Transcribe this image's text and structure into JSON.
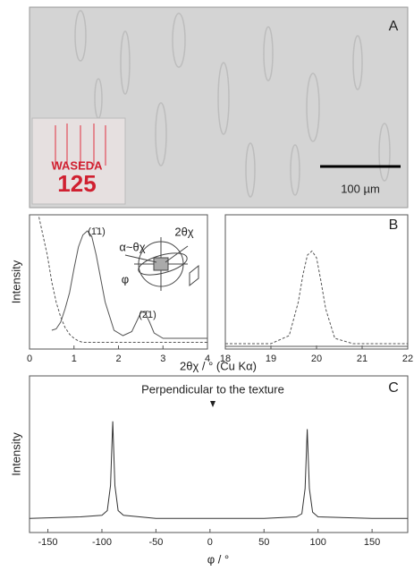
{
  "panel_a": {
    "label": "A",
    "scale_bar": "100 µm",
    "sample_text": [
      "WASEDA",
      "125"
    ]
  },
  "chart_data": [
    {
      "type": "line",
      "panel": "B",
      "ylabel": "Intensity",
      "xlabel": "2θχ / ° (Cu Kα)",
      "annotations": [
        "(1̄1)",
        "(2̄1)",
        "2θχ",
        "α~θχ",
        "φ"
      ],
      "x": [
        0.05,
        0.2,
        0.4,
        0.5,
        0.6,
        0.7,
        0.8,
        0.9,
        1.0,
        1.1,
        1.2,
        1.3,
        1.4,
        1.5,
        1.7,
        1.9,
        2.1,
        2.3,
        2.4,
        2.5,
        2.55,
        2.6,
        2.7,
        2.8,
        3.0,
        3.5,
        4.0
      ],
      "xlim": [
        0,
        4
      ],
      "xticks": [
        0,
        1,
        2,
        3,
        4
      ],
      "ylim": [
        0,
        1
      ],
      "series": [
        {
          "color": "#555555",
          "dashed": false,
          "values": [
            null,
            null,
            null,
            0.14,
            0.15,
            0.2,
            0.3,
            0.42,
            0.6,
            0.76,
            0.85,
            0.88,
            0.84,
            0.7,
            0.35,
            0.14,
            0.1,
            0.13,
            0.2,
            0.27,
            0.28,
            0.27,
            0.2,
            0.12,
            0.08,
            0.08,
            0.08
          ]
        },
        {
          "color": "#555555",
          "dashed": true,
          "values": [
            1.0,
            1.0,
            0.7,
            0.5,
            0.35,
            0.24,
            0.16,
            0.11,
            0.08,
            0.06,
            0.05,
            0.05,
            0.05,
            0.05,
            0.05,
            0.05,
            0.05,
            0.05,
            0.05,
            0.05,
            0.05,
            0.05,
            0.05,
            0.05,
            0.05,
            0.05,
            0.05
          ]
        }
      ]
    },
    {
      "type": "line",
      "panel": "B",
      "x": [
        18,
        19,
        19.4,
        19.6,
        19.7,
        19.8,
        19.9,
        20.0,
        20.1,
        20.2,
        20.4,
        20.8,
        22
      ],
      "xlim": [
        18,
        22
      ],
      "xticks": [
        18,
        19,
        20,
        21,
        22
      ],
      "ylim": [
        0,
        1
      ],
      "series": [
        {
          "color": "#555555",
          "dashed": true,
          "values": [
            0.04,
            0.04,
            0.1,
            0.35,
            0.55,
            0.7,
            0.73,
            0.68,
            0.5,
            0.3,
            0.08,
            0.04,
            0.04
          ]
        },
        {
          "color": "#555555",
          "dashed": false,
          "values": [
            0.02,
            0.02,
            0.02,
            0.02,
            0.02,
            0.02,
            0.02,
            0.02,
            0.02,
            0.02,
            0.02,
            0.02,
            0.02
          ]
        }
      ]
    },
    {
      "type": "line",
      "panel": "C",
      "ylabel": "Intensity",
      "xlabel": "φ / °",
      "annotations": [
        "Perpendicular to the texture"
      ],
      "x": [
        -167,
        -120,
        -100,
        -95,
        -92,
        -90,
        -88,
        -85,
        -80,
        -50,
        0,
        50,
        80,
        85,
        88,
        90,
        92,
        95,
        100,
        150,
        183
      ],
      "xlim": [
        -167,
        183
      ],
      "xticks": [
        -150,
        -100,
        -50,
        0,
        50,
        100,
        150
      ],
      "ylim": [
        0,
        1
      ],
      "series": [
        {
          "color": "#333333",
          "dashed": false,
          "values": [
            0.09,
            0.1,
            0.11,
            0.14,
            0.3,
            0.71,
            0.3,
            0.14,
            0.11,
            0.09,
            0.09,
            0.09,
            0.1,
            0.12,
            0.28,
            0.66,
            0.28,
            0.13,
            0.1,
            0.09,
            0.09
          ]
        }
      ]
    }
  ]
}
